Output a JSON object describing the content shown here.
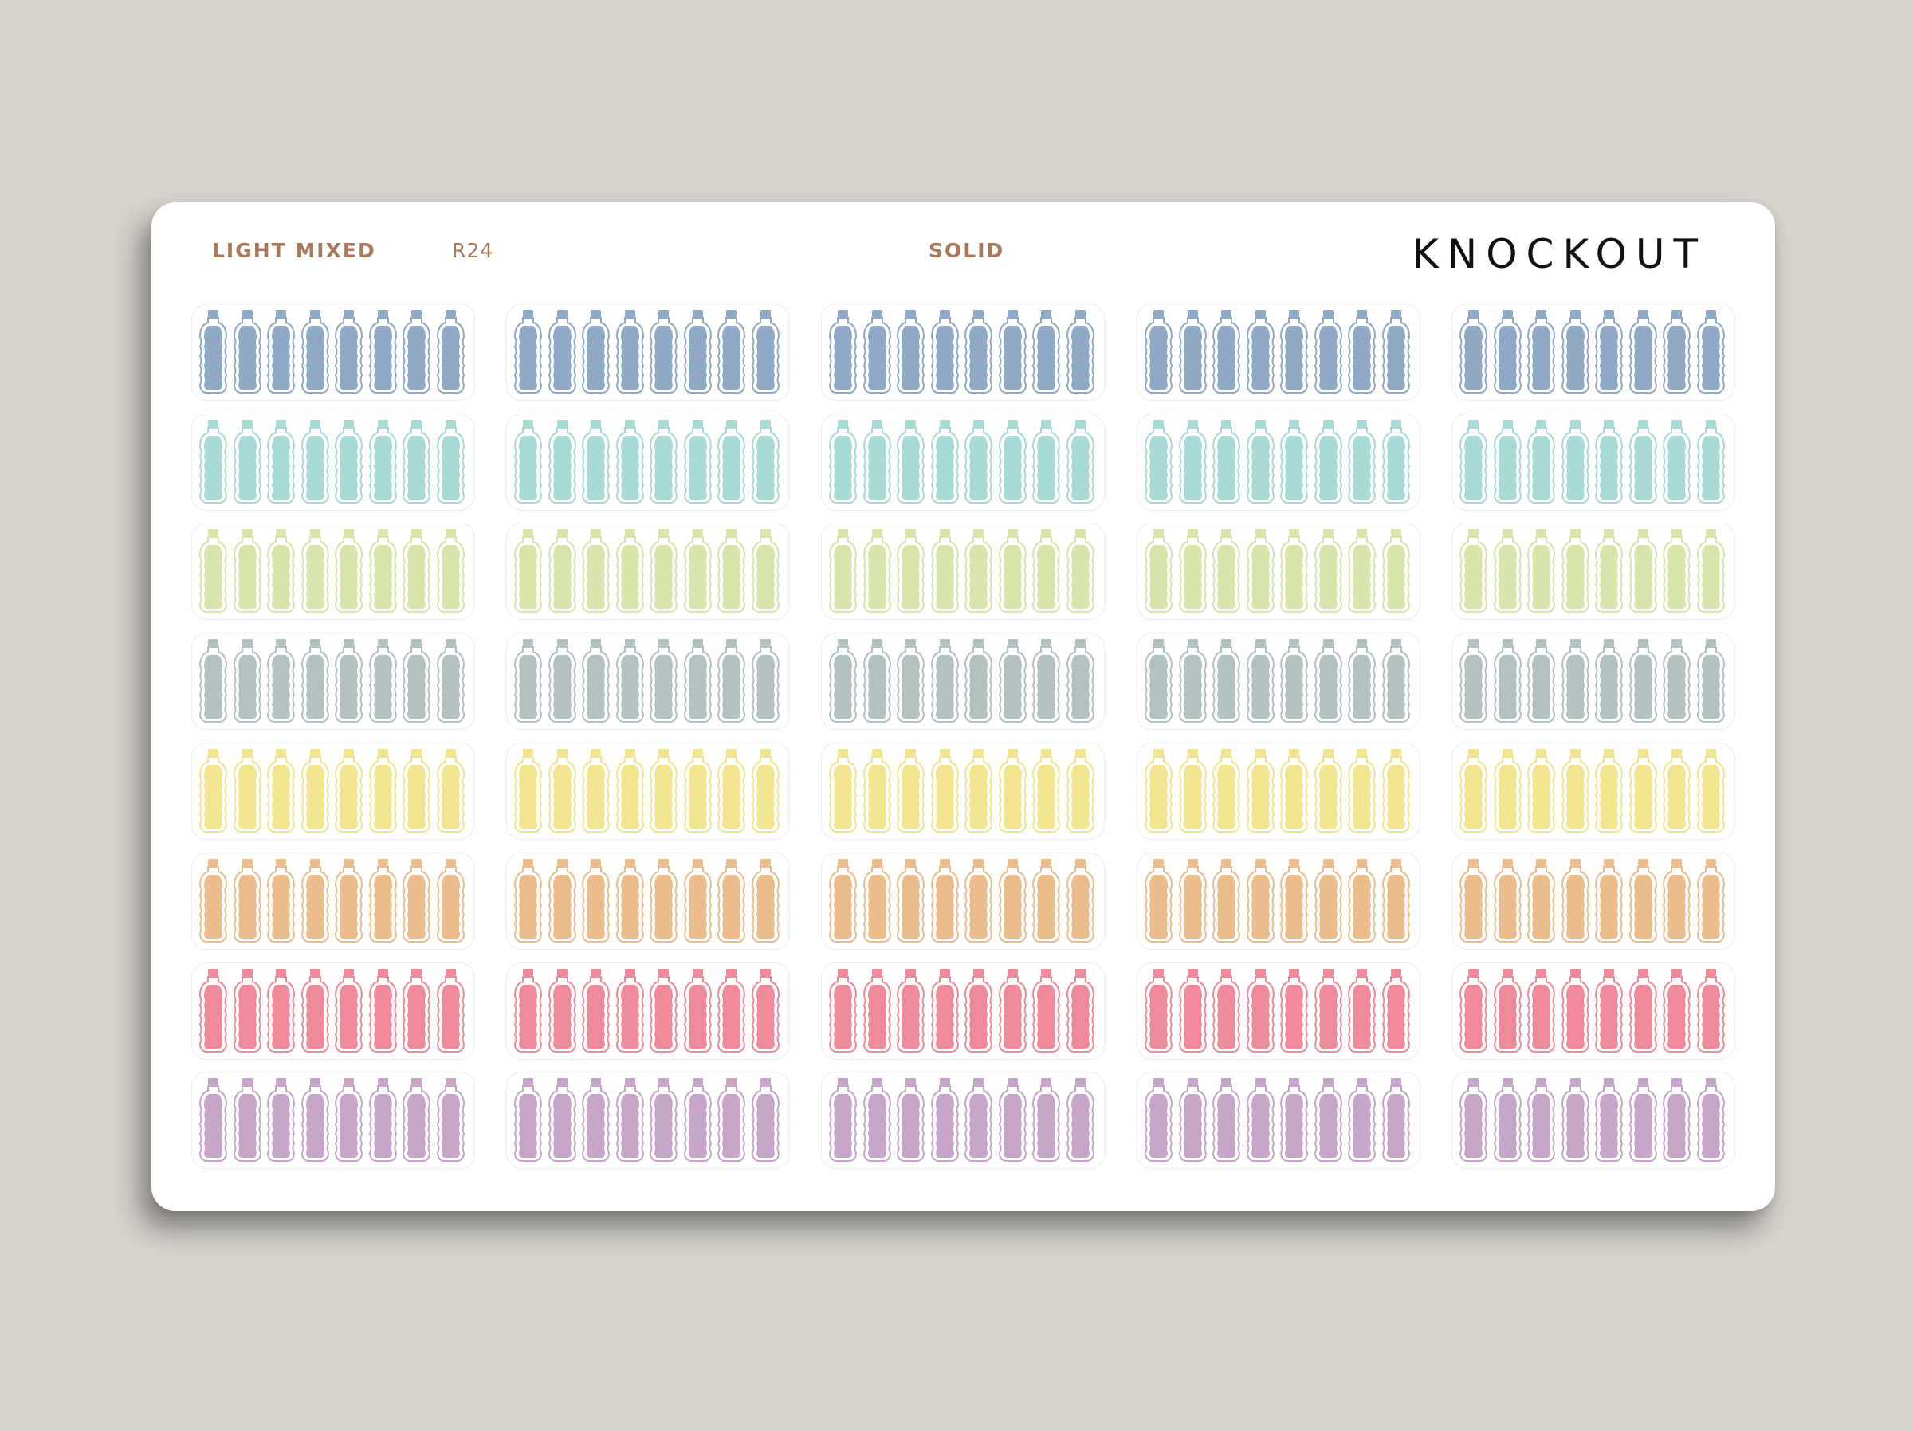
{
  "sheet": {
    "variant_label": "LIGHT MIXED",
    "code": "R24",
    "style_label": "SOLID",
    "brand": "KNOCKOUT"
  },
  "sticker_grid": {
    "icon": "water-bottle-icon",
    "columns": 5,
    "bottles_per_strip": 8,
    "row_colors": [
      {
        "name": "blue",
        "fill": "#8fa9c6",
        "outline": "#8fa9c6"
      },
      {
        "name": "aqua",
        "fill": "#a8dad6",
        "outline": "#a8dad6"
      },
      {
        "name": "light-green",
        "fill": "#d7e4ab",
        "outline": "#d7e4ab"
      },
      {
        "name": "gray",
        "fill": "#b3c1c0",
        "outline": "#b3c1c0"
      },
      {
        "name": "yellow",
        "fill": "#f1e68f",
        "outline": "#f1e68f"
      },
      {
        "name": "orange",
        "fill": "#ebbd8d",
        "outline": "#ebbd8d"
      },
      {
        "name": "pink",
        "fill": "#ee8a99",
        "outline": "#ee8a99"
      },
      {
        "name": "purple",
        "fill": "#c6a6c8",
        "outline": "#c6a6c8"
      }
    ]
  }
}
